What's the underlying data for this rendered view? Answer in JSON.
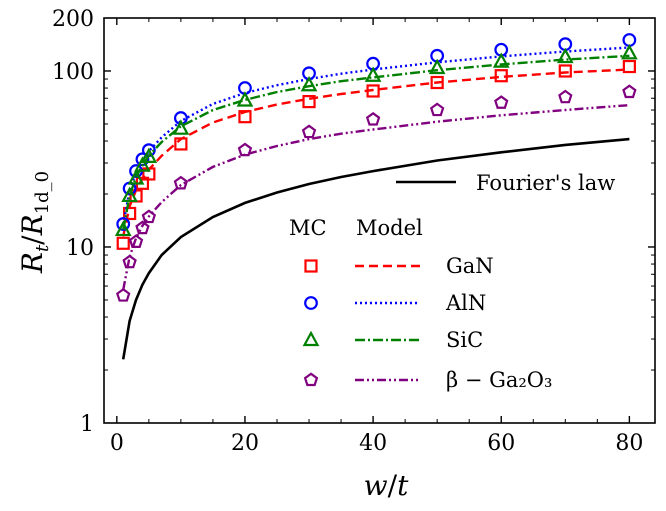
{
  "chart_data": {
    "type": "line",
    "xlabel": "w/t",
    "ylabel": "R_t/R_1d_0",
    "ylabel_parts": {
      "main": "R",
      "sub1": "t",
      "slash": "/",
      "main2": "R",
      "sub2": "1d_0"
    },
    "xlabel_parts": {
      "a": "w",
      "slash": "/",
      "b": "t"
    },
    "xlim": [
      -2,
      84
    ],
    "ylim": [
      1,
      200
    ],
    "y_scale": "log",
    "x_ticks": [
      0,
      20,
      40,
      60,
      80
    ],
    "x_tick_labels": [
      "0",
      "20",
      "40",
      "60",
      "80"
    ],
    "y_ticks": [
      1,
      10,
      100,
      200
    ],
    "y_tick_labels": [
      "1",
      "10",
      "100",
      "200"
    ],
    "legend": {
      "fourier_label": "Fourier's law",
      "header_mc": "MC",
      "header_model": "Model",
      "materials": [
        "GaN",
        "AlN",
        "SiC",
        "β − Ga₂O₃"
      ]
    },
    "model_x": [
      1,
      2,
      3,
      4,
      5,
      7,
      10,
      15,
      20,
      25,
      30,
      35,
      40,
      50,
      60,
      70,
      80
    ],
    "series": [
      {
        "name": "GaN",
        "color": "#ff0000",
        "marker": "square",
        "dash": "9,5",
        "mc_x": [
          1,
          2,
          3,
          4,
          5,
          10,
          20,
          30,
          40,
          50,
          60,
          70,
          80
        ],
        "mc_y": [
          10.5,
          15.5,
          19.5,
          23,
          26,
          38.5,
          55,
          67,
          77,
          86,
          94,
          100,
          106
        ],
        "model_y": [
          11.5,
          17,
          21,
          24.5,
          27.5,
          33,
          41,
          51,
          58.5,
          64.5,
          69.5,
          74,
          78,
          86,
          92.5,
          98,
          102
        ]
      },
      {
        "name": "AlN",
        "color": "#0000ff",
        "marker": "circle",
        "dash": "2,3",
        "mc_x": [
          1,
          2,
          3,
          4,
          5,
          10,
          20,
          30,
          40,
          50,
          60,
          70,
          80
        ],
        "mc_y": [
          13.5,
          21.5,
          27,
          31.5,
          35.5,
          54,
          80,
          97,
          110,
          122,
          132,
          142,
          150
        ],
        "model_y": [
          13.5,
          21,
          26.5,
          31,
          35,
          42,
          52,
          65,
          75,
          83,
          90,
          96.5,
          102,
          112,
          121,
          129,
          136
        ]
      },
      {
        "name": "SiC",
        "color": "#008000",
        "marker": "triangle",
        "dash": "10,3,2,3",
        "mc_x": [
          1,
          2,
          3,
          4,
          5,
          10,
          20,
          30,
          40,
          50,
          60,
          70,
          80
        ],
        "mc_y": [
          12.5,
          19.5,
          24.5,
          29,
          32.5,
          47,
          68,
          83,
          94,
          104,
          113,
          120,
          126
        ],
        "model_y": [
          12.5,
          19.5,
          25,
          29,
          33,
          39.5,
          48.5,
          60,
          68.5,
          76,
          82,
          87.5,
          92,
          101,
          109,
          116,
          122
        ]
      },
      {
        "name": "β − Ga₂O₃",
        "color": "#800080",
        "marker": "pentagon",
        "dash": "9,3,2,3,2,3",
        "mc_x": [
          1,
          2,
          3,
          4,
          5,
          10,
          20,
          30,
          40,
          50,
          60,
          70,
          80
        ],
        "mc_y": [
          5.3,
          8.2,
          10.7,
          12.8,
          14.8,
          23,
          35.5,
          45,
          53,
          60,
          66,
          71,
          76
        ],
        "model_y": [
          5.7,
          8.8,
          11.2,
          13.2,
          14.9,
          18,
          22.5,
          28.5,
          33.5,
          37.5,
          41,
          44,
          46.5,
          51.5,
          56,
          60,
          64
        ]
      }
    ],
    "fourier": {
      "name": "Fourier's law",
      "color": "#000000",
      "x": [
        1,
        2,
        3,
        4,
        5,
        7,
        10,
        15,
        20,
        25,
        30,
        35,
        40,
        50,
        60,
        70,
        80
      ],
      "y": [
        2.3,
        3.8,
        5,
        6.1,
        7.1,
        9,
        11.4,
        14.8,
        17.8,
        20.4,
        22.8,
        25,
        27,
        31,
        34.5,
        38,
        41
      ]
    }
  }
}
